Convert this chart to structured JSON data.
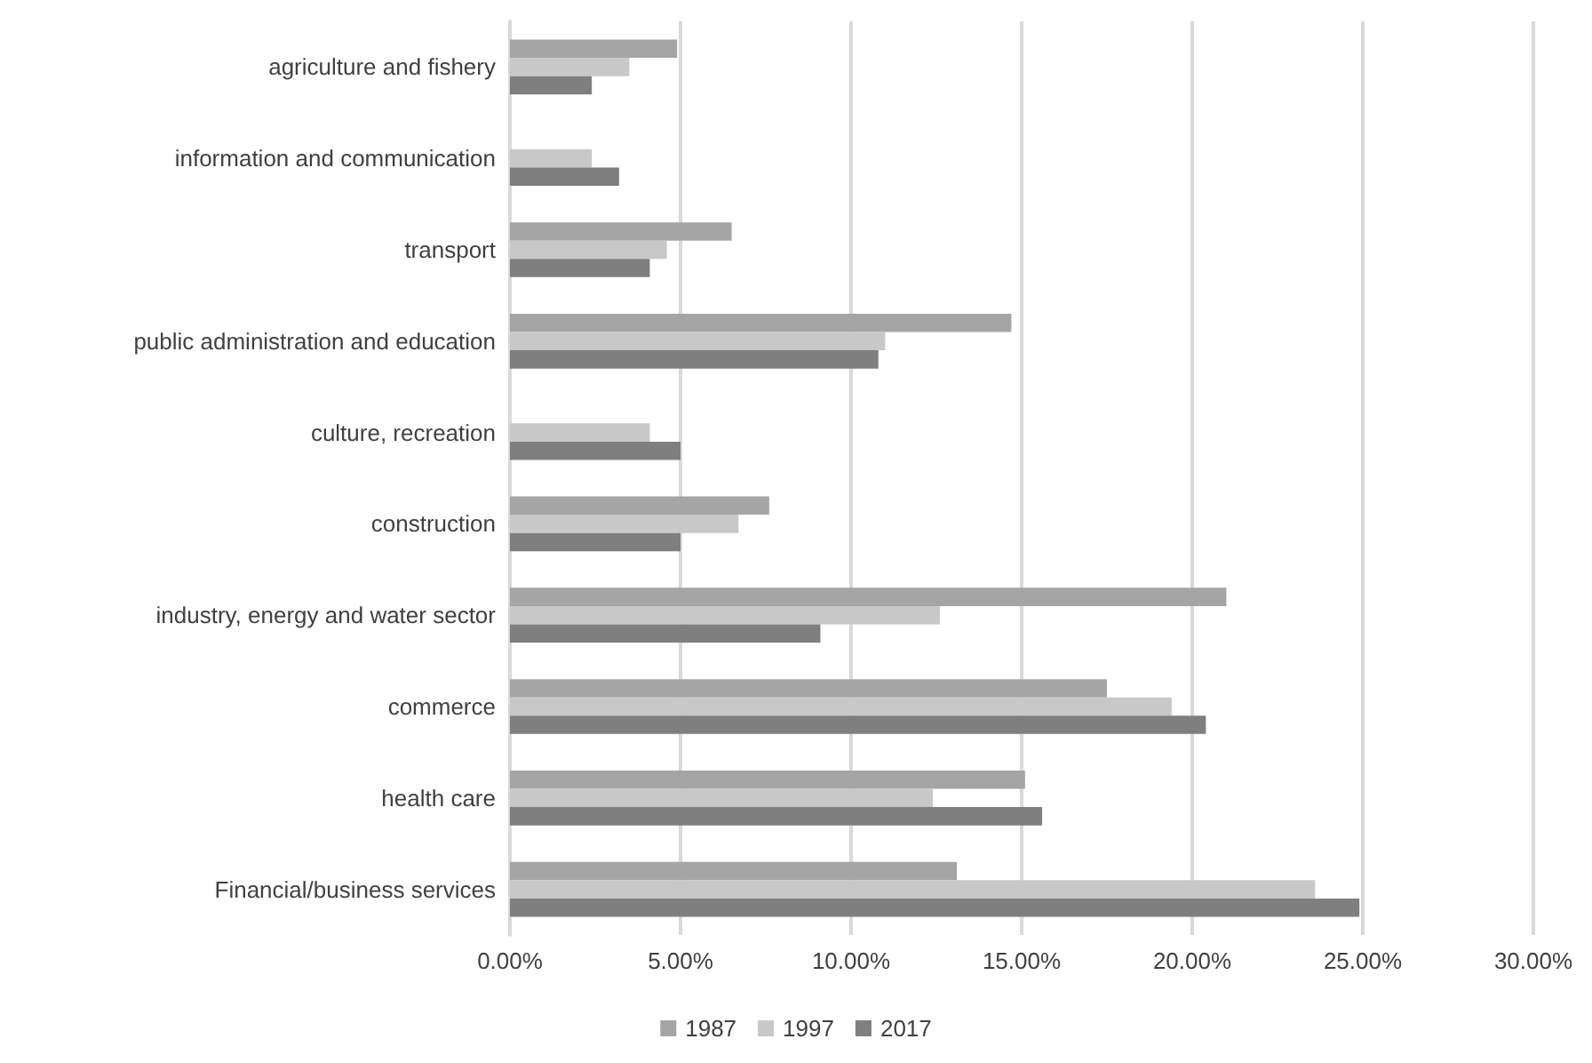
{
  "chart_data": {
    "type": "bar",
    "orientation": "horizontal",
    "categories": [
      "agriculture and fishery",
      "information and communication",
      "transport",
      "public administration and education",
      "culture, recreation",
      "construction",
      "industry, energy and water sector",
      "commerce",
      "health care",
      "Financial/business services"
    ],
    "series": [
      {
        "name": "1987",
        "color": "#a5a5a5",
        "values": [
          4.9,
          null,
          6.5,
          14.7,
          null,
          7.6,
          21.0,
          17.5,
          15.1,
          13.1
        ]
      },
      {
        "name": "1997",
        "color": "#c8c8c8",
        "values": [
          3.5,
          2.4,
          4.6,
          11.0,
          4.1,
          6.7,
          12.6,
          19.4,
          12.4,
          23.6
        ]
      },
      {
        "name": "2017",
        "color": "#7f7f7f",
        "values": [
          2.4,
          3.2,
          4.1,
          10.8,
          5.0,
          5.0,
          9.1,
          20.4,
          15.6,
          24.9
        ]
      }
    ],
    "xlim": [
      0,
      30
    ],
    "xticks": [
      {
        "value": 0,
        "label": "0.00%"
      },
      {
        "value": 5,
        "label": "5.00%"
      },
      {
        "value": 10,
        "label": "10.00%"
      },
      {
        "value": 15,
        "label": "15.00%"
      },
      {
        "value": 20,
        "label": "20.00%"
      },
      {
        "value": 25,
        "label": "25.00%"
      },
      {
        "value": 30,
        "label": "30.00%"
      }
    ],
    "grid": "x",
    "legend": "bottom"
  }
}
